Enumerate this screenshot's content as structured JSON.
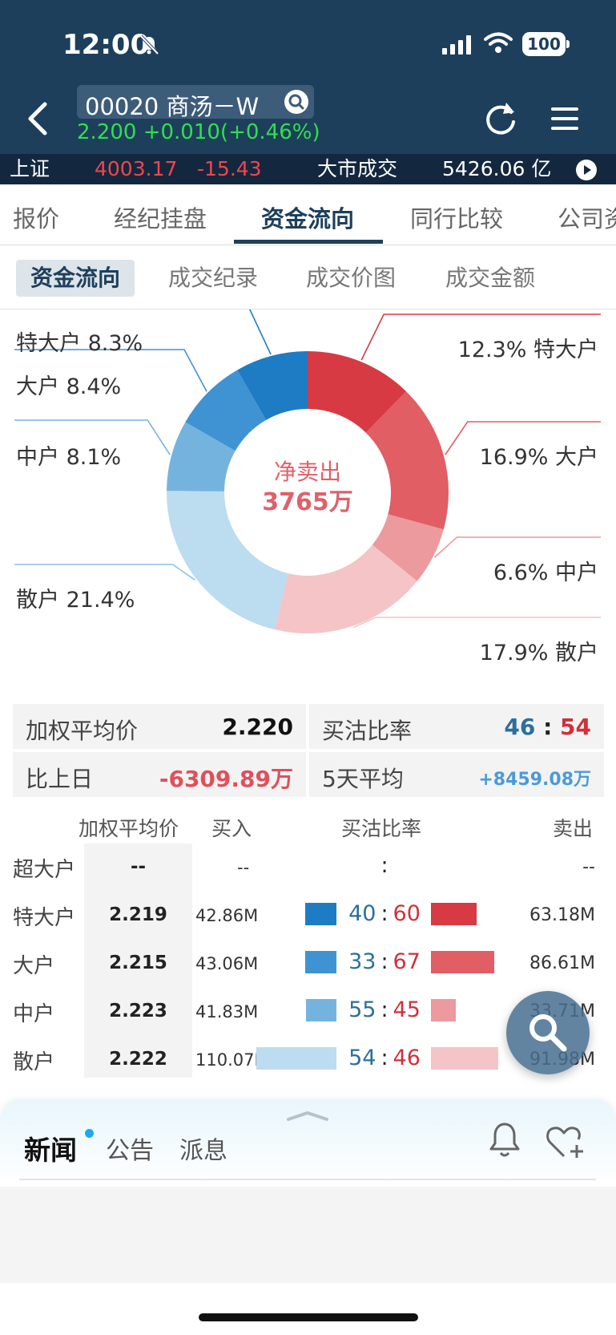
{
  "status_bar": {
    "time": "12:00",
    "battery": "100"
  },
  "header": {
    "stock_name": "00020 商汤－W",
    "price": "2.200",
    "change": "+0.010(+0.46%)"
  },
  "ticker": {
    "index_name": "上证",
    "index_value": "4003.17",
    "index_change": "-15.43",
    "turnover_label": "大市成交",
    "turnover_value": "5426.06 亿"
  },
  "tabs": [
    "报价",
    "经纪挂盘",
    "资金流向",
    "同行比较",
    "公司资"
  ],
  "active_tab": "资金流向",
  "subtabs": [
    "资金流向",
    "成交纪录",
    "成交价图",
    "成交金额"
  ],
  "chart_data": {
    "type": "pie",
    "donut": true,
    "center_title": "净卖出",
    "center_value": "3765万",
    "buy_slices": [
      {
        "name": "特大户",
        "label": "8.3%",
        "value": 8.3,
        "color": "#1e7cc5"
      },
      {
        "name": "大户",
        "label": "8.4%",
        "value": 8.4,
        "color": "#3f93d2"
      },
      {
        "name": "中户",
        "label": "8.1%",
        "value": 8.1,
        "color": "#75b3df"
      },
      {
        "name": "散户",
        "label": "21.4%",
        "value": 21.4,
        "color": "#bcdcf0"
      }
    ],
    "sell_slices": [
      {
        "name": "特大户",
        "label": "12.3%",
        "value": 12.3,
        "color": "#d73a42"
      },
      {
        "name": "大户",
        "label": "16.9%",
        "value": 16.9,
        "color": "#e05e64"
      },
      {
        "name": "中户",
        "label": "6.6%",
        "value": 6.6,
        "color": "#ec9a9d"
      },
      {
        "name": "散户",
        "label": "17.9%",
        "value": 17.9,
        "color": "#f4c4c6"
      }
    ]
  },
  "stats": {
    "avg_price_label": "加权平均价",
    "avg_price_value": "2.220",
    "ratio_label": "买沽比率",
    "ratio_buy": "46",
    "ratio_sep": ":",
    "ratio_sell": "54",
    "vs_prev_label": "比上日",
    "vs_prev_value": "-6309.89万",
    "avg5_label": "5天平均",
    "avg5_value": "+8459.08万"
  },
  "table": {
    "headers": {
      "avg": "加权平均价",
      "buy": "买入",
      "ratio": "买沽比率",
      "sell": "卖出"
    },
    "rows": [
      {
        "name": "超大户",
        "avg": "--",
        "buy": "--",
        "ratio_buy": "",
        "ratio_sep": ":",
        "ratio_sell": "",
        "sell": "--",
        "buy_pct": 0,
        "sell_pct": 0,
        "buy_color": "",
        "sell_color": ""
      },
      {
        "name": "特大户",
        "avg": "2.219",
        "buy": "42.86M",
        "ratio_buy": "40",
        "ratio_sep": ":",
        "ratio_sell": "60",
        "sell": "63.18M",
        "buy_pct": 40,
        "sell_pct": 60,
        "buy_color": "#1e7cc5",
        "sell_color": "#d73a42"
      },
      {
        "name": "大户",
        "avg": "2.215",
        "buy": "43.06M",
        "ratio_buy": "33",
        "ratio_sep": ":",
        "ratio_sell": "67",
        "sell": "86.61M",
        "buy_pct": 33,
        "sell_pct": 67,
        "buy_color": "#3f93d2",
        "sell_color": "#e05e64"
      },
      {
        "name": "中户",
        "avg": "2.223",
        "buy": "41.83M",
        "ratio_buy": "55",
        "ratio_sep": ":",
        "ratio_sell": "45",
        "sell": "33.71M",
        "buy_pct": 55,
        "sell_pct": 45,
        "buy_color": "#75b3df",
        "sell_color": "#ec9a9d"
      },
      {
        "name": "散户",
        "avg": "2.222",
        "buy": "110.07M",
        "ratio_buy": "54",
        "ratio_sep": ":",
        "ratio_sell": "46",
        "sell": "91.98M",
        "buy_pct": 54,
        "sell_pct": 46,
        "buy_color": "#bcdcf0",
        "sell_color": "#f4c4c6"
      }
    ]
  },
  "news": {
    "tabs": [
      "新闻",
      "公告",
      "派息"
    ]
  },
  "colors": {
    "header_bg": "#1d3f5c",
    "up_green": "#2fe04a",
    "down_red": "#d0313a",
    "buy_blue": "#2d6f99"
  },
  "icons": [
    "back-icon",
    "search-icon",
    "refresh-icon",
    "menu-icon",
    "play-icon",
    "bell-icon",
    "heart-add-icon",
    "magnifier-icon"
  ]
}
